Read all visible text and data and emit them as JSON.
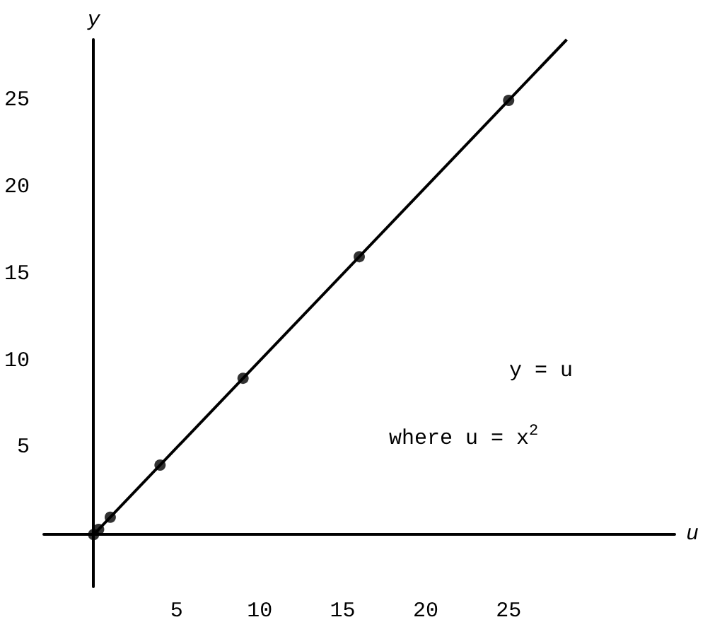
{
  "chart_data": {
    "type": "line",
    "xlabel": "u",
    "ylabel": "y",
    "annotations": [
      "y = u",
      "where u = x$^{2}$"
    ],
    "series": [
      {
        "color": "#000000",
        "x": [
          0,
          28.5
        ],
        "values": [
          0,
          28.5
        ],
        "marker": "none"
      },
      {
        "type": "scatter",
        "color": "#000000",
        "x": [
          0,
          0.3,
          1,
          4,
          9,
          16,
          25
        ],
        "values": [
          0,
          0.3,
          1,
          4,
          9,
          16,
          25
        ],
        "marker": "circle"
      }
    ],
    "xlim": [
      -3,
      35
    ],
    "ylim": [
      -3,
      28.5
    ],
    "xticks": [
      5,
      10,
      15,
      20,
      25
    ],
    "yticks": [
      5,
      10,
      15,
      20,
      25
    ],
    "grid": false
  }
}
